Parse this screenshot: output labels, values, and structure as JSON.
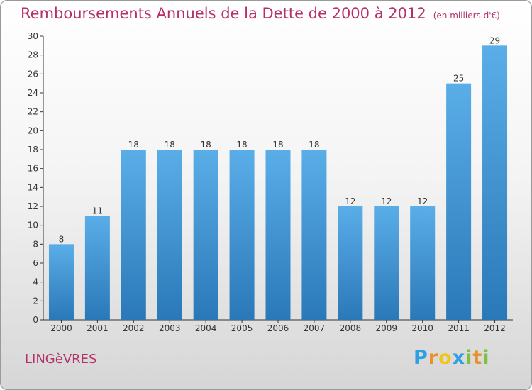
{
  "chart_data": {
    "type": "bar",
    "title": "Remboursements Annuels de la Dette de 2000 à 2012",
    "subtitle": "(en milliers d'€)",
    "categories": [
      "2000",
      "2001",
      "2002",
      "2003",
      "2004",
      "2005",
      "2006",
      "2007",
      "2008",
      "2009",
      "2010",
      "2011",
      "2012"
    ],
    "values": [
      8,
      11,
      18,
      18,
      18,
      18,
      18,
      18,
      12,
      12,
      12,
      25,
      29
    ],
    "ylim": [
      0,
      30
    ],
    "yticks": [
      0,
      2,
      4,
      6,
      8,
      10,
      12,
      14,
      16,
      18,
      20,
      22,
      24,
      26,
      28,
      30
    ],
    "grid": false,
    "bar_color_top": "#5aaee8",
    "bar_color_bottom": "#2a78b8"
  },
  "footer": {
    "commune": "LINGèVRES",
    "logo_letters": [
      "P",
      "r",
      "o",
      "x",
      "i",
      "t",
      "i"
    ],
    "logo_colors": [
      "#2e9fe0",
      "#e8912a",
      "#f2c41c",
      "#2e9fe0",
      "#7bc244",
      "#e8912a",
      "#7bc244"
    ]
  },
  "colors": {
    "title": "#b5306a",
    "axis": "#333333"
  }
}
